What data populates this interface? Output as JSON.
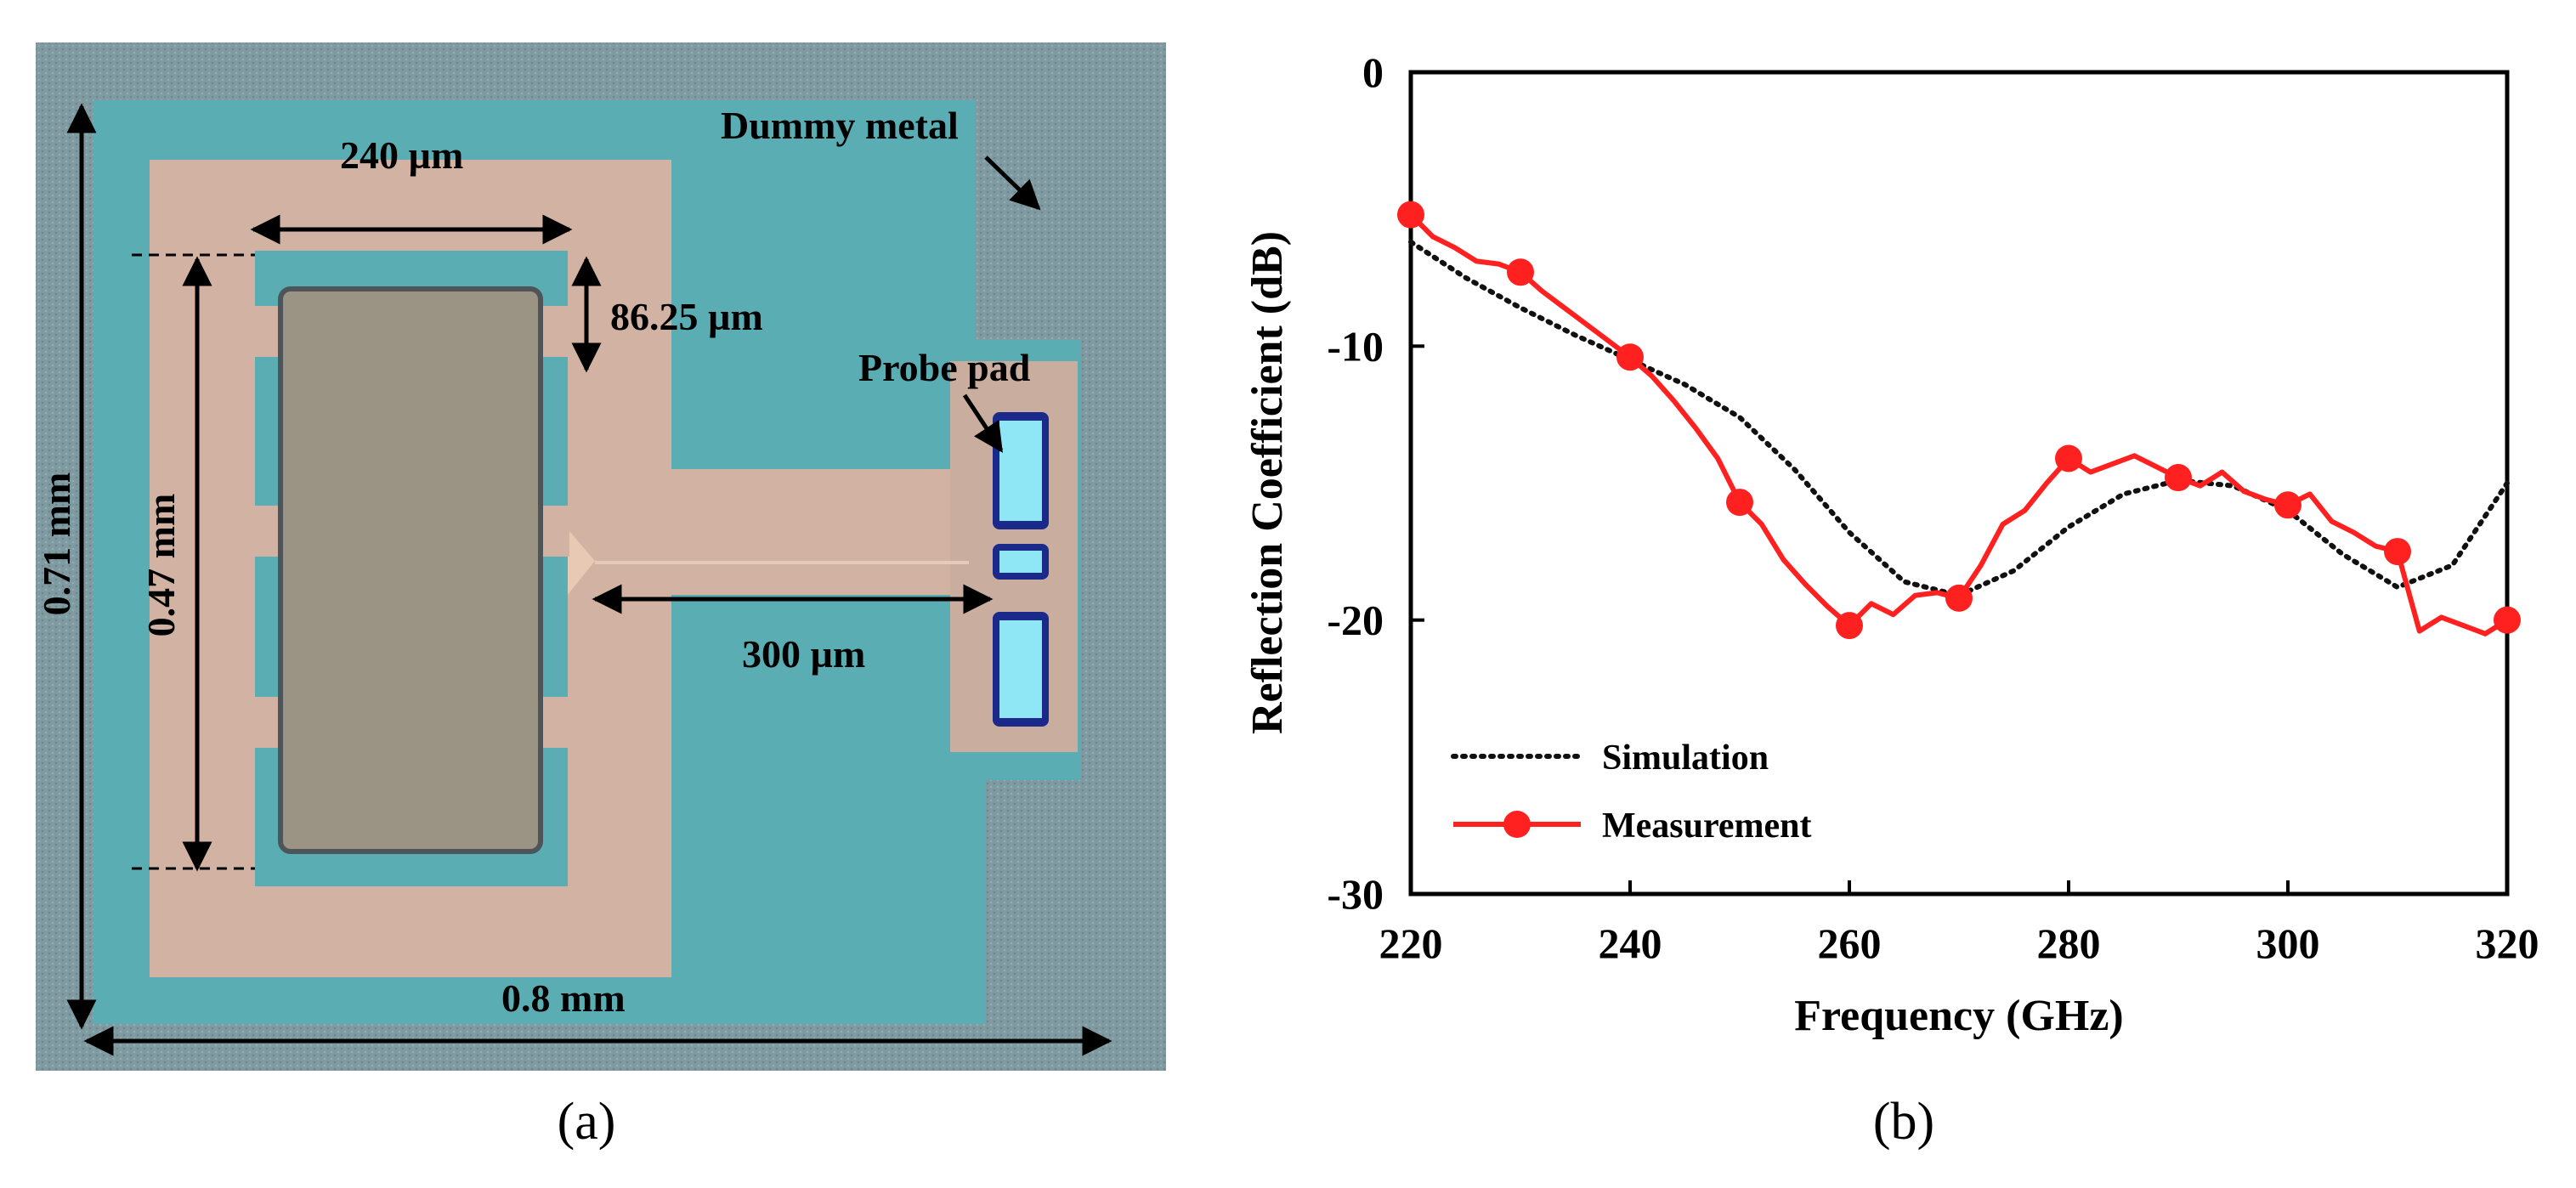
{
  "panel_a": {
    "caption": "(a)",
    "labels": {
      "dummy_metal": "Dummy metal",
      "probe_pad": "Probe pad",
      "w240": "240 µm",
      "h86": "86.25 µm",
      "h047": "0.47 mm",
      "h071": "0.71 mm",
      "w300": "300 µm",
      "w08": "0.8 mm"
    },
    "colors": {
      "substrate": "#7e98a0",
      "chip_teal": "#5aaeb3",
      "metal_pink": "#d2b2a3",
      "antenna": "#9b9384",
      "pad": "#8fe6f5"
    }
  },
  "panel_b": {
    "caption": "(b)"
  },
  "chart_data": {
    "type": "line",
    "xlabel": "Frequency (GHz)",
    "ylabel": "Reflection Coefficient (dB)",
    "xlim": [
      220,
      320
    ],
    "ylim": [
      -30,
      0
    ],
    "xticks": [
      220,
      240,
      260,
      280,
      300,
      320
    ],
    "yticks": [
      0,
      -10,
      -20,
      -30
    ],
    "legend": "bottom-left",
    "grid": false,
    "series": [
      {
        "name": "Simulation",
        "style": "dotted",
        "color": "#111111",
        "x": [
          220,
          225,
          230,
          235,
          240,
          245,
          250,
          255,
          260,
          265,
          270,
          275,
          280,
          285,
          290,
          295,
          300,
          305,
          310,
          315,
          320
        ],
        "y": [
          -6.2,
          -7.5,
          -8.6,
          -9.6,
          -10.5,
          -11.4,
          -12.6,
          -14.5,
          -16.8,
          -18.6,
          -19.1,
          -18.2,
          -16.6,
          -15.4,
          -14.9,
          -15.1,
          -16.0,
          -17.6,
          -18.8,
          -18.0,
          -15.0
        ]
      },
      {
        "name": "Measurement",
        "style": "solid",
        "color": "#ff2020",
        "x": [
          220,
          222,
          224,
          226,
          228,
          230,
          232,
          234,
          236,
          238,
          240,
          242,
          244,
          246,
          248,
          250,
          252,
          254,
          256,
          258,
          260,
          262,
          264,
          266,
          268,
          270,
          272,
          274,
          276,
          278,
          280,
          282,
          284,
          286,
          288,
          290,
          292,
          294,
          296,
          298,
          300,
          302,
          304,
          306,
          308,
          310,
          312,
          314,
          316,
          318,
          320
        ],
        "y": [
          -5.2,
          -6.0,
          -6.4,
          -6.9,
          -7.0,
          -7.3,
          -8.0,
          -8.6,
          -9.2,
          -9.8,
          -10.4,
          -11.1,
          -12.0,
          -13.0,
          -14.1,
          -15.7,
          -16.5,
          -17.8,
          -18.7,
          -19.5,
          -20.2,
          -19.4,
          -19.8,
          -19.1,
          -19.0,
          -19.2,
          -18.0,
          -16.5,
          -16.0,
          -15.0,
          -14.1,
          -14.6,
          -14.3,
          -14.0,
          -14.4,
          -14.8,
          -15.1,
          -14.6,
          -15.3,
          -15.6,
          -15.8,
          -15.4,
          -16.4,
          -16.8,
          -17.3,
          -17.5,
          -20.4,
          -19.9,
          -20.2,
          -20.5,
          -20.0
        ]
      }
    ],
    "markers": {
      "series": "Measurement",
      "x": [
        220,
        230,
        240,
        250,
        260,
        270,
        280,
        290,
        300,
        310,
        320
      ],
      "y": [
        -5.2,
        -7.3,
        -10.4,
        -15.7,
        -20.2,
        -19.2,
        -14.1,
        -14.8,
        -15.8,
        -17.5,
        -20.0
      ]
    }
  }
}
